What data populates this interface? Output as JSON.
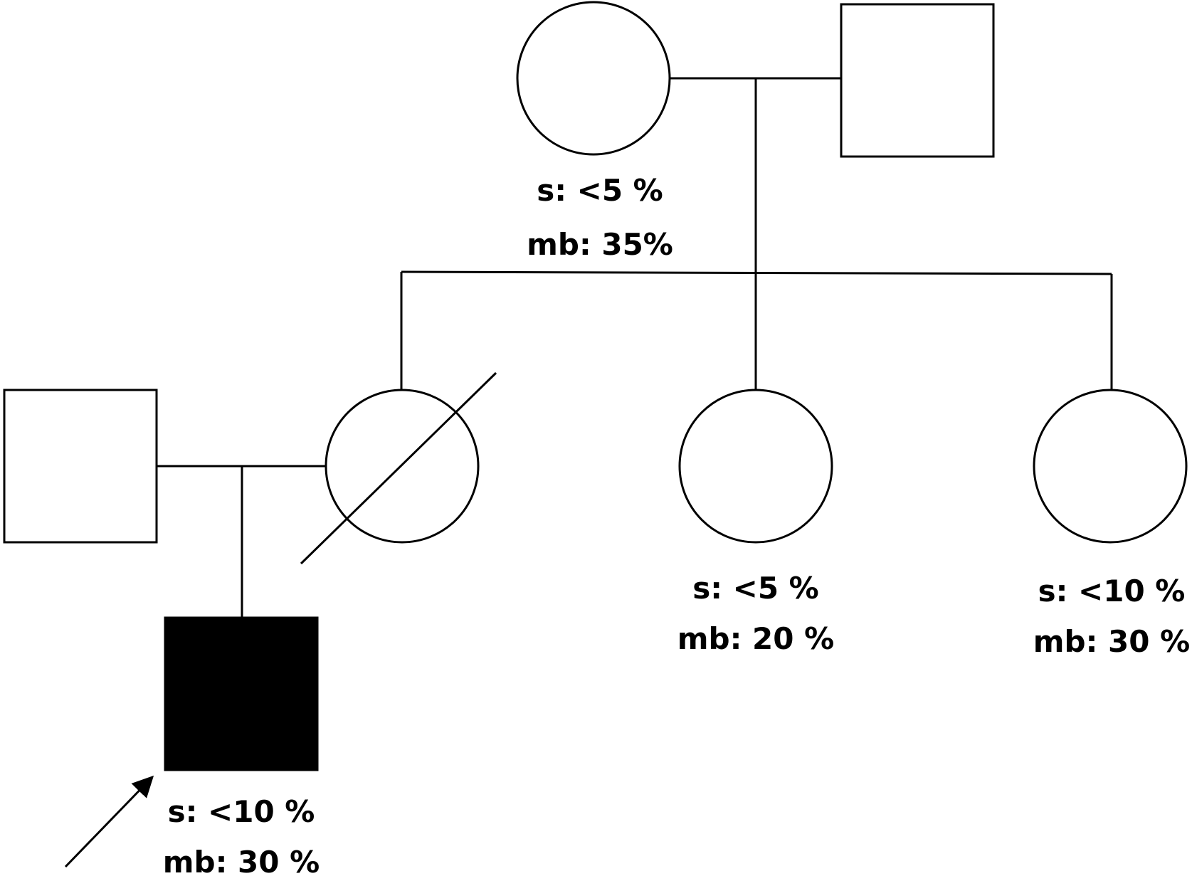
{
  "pedigree": {
    "colors": {
      "line": "#000000",
      "unaffected_fill": "#ffffff",
      "affected_fill": "#000000"
    },
    "legend_symbols": {
      "female": "circle",
      "male": "square",
      "deceased": "diagonal-slash",
      "affected": "filled",
      "proband": "arrow"
    },
    "individuals": {
      "grandmother": {
        "sex": "female",
        "affected": false,
        "deceased": false,
        "s_label": "s: <5 %",
        "mb_label": "mb: 35%"
      },
      "grandfather": {
        "sex": "male",
        "affected": false,
        "deceased": false
      },
      "mother": {
        "sex": "female",
        "affected": false,
        "deceased": true
      },
      "father": {
        "sex": "male",
        "affected": false,
        "deceased": false
      },
      "aunt_1": {
        "sex": "female",
        "affected": false,
        "deceased": false,
        "s_label": "s: <5 %",
        "mb_label": "mb: 20 %"
      },
      "aunt_2": {
        "sex": "female",
        "affected": false,
        "deceased": false,
        "s_label": "s: <10 %",
        "mb_label": "mb: 30 %"
      },
      "proband": {
        "sex": "male",
        "affected": true,
        "deceased": false,
        "is_proband": true,
        "s_label": "s: <10 %",
        "mb_label": "mb: 30 %"
      }
    }
  }
}
